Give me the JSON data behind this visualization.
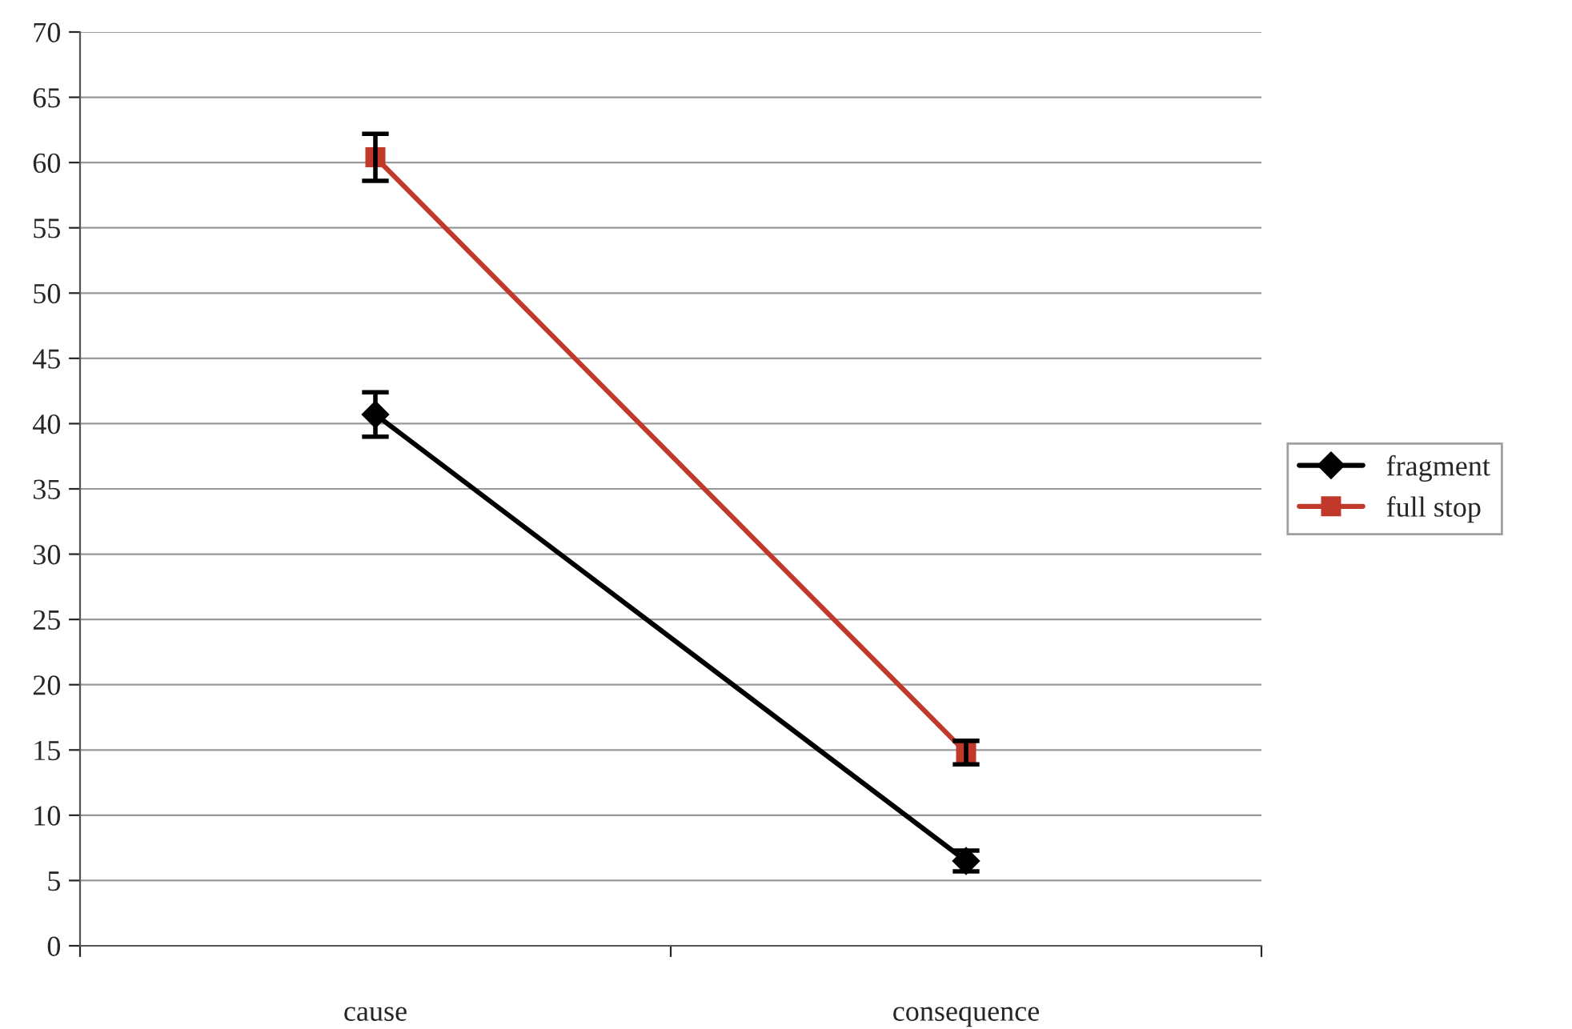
{
  "chart_data": {
    "type": "line",
    "categories": [
      "cause",
      "consequence"
    ],
    "series": [
      {
        "name": "fragment",
        "color": "#000000",
        "values": [
          40.7,
          6.5
        ],
        "errors": [
          1.7,
          0.8
        ],
        "marker": "diamond"
      },
      {
        "name": "full stop",
        "color": "#c0392b",
        "values": [
          60.4,
          14.8
        ],
        "errors": [
          1.8,
          0.9
        ],
        "marker": "square"
      }
    ],
    "ylim": [
      0,
      70
    ],
    "yticks": [
      0,
      5,
      10,
      15,
      20,
      25,
      30,
      35,
      40,
      45,
      50,
      55,
      60,
      65,
      70
    ],
    "grid": "y",
    "legend": "right",
    "line_style": "solid"
  }
}
